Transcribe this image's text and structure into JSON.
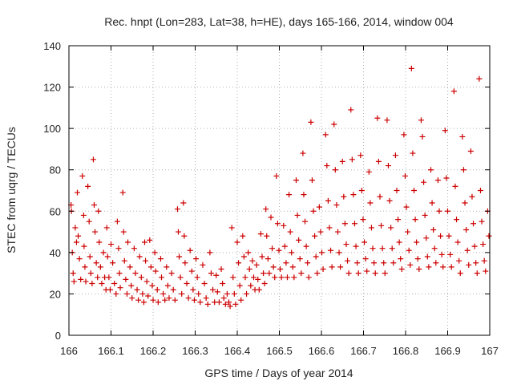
{
  "chart_data": {
    "type": "scatter",
    "title": "Rec. hnpt (Lon=283, Lat=38, h=HE), days 165-166, 2014, window 004",
    "xlabel": "GPS time / Days of year 2014",
    "ylabel": "STEC from uqrg / TECUs",
    "xlim": [
      166,
      167
    ],
    "ylim": [
      0,
      140
    ],
    "xticks": [
      "166",
      "166.1",
      "166.2",
      "166.3",
      "166.4",
      "166.5",
      "166.6",
      "166.7",
      "166.8",
      "166.9",
      "167"
    ],
    "yticks": [
      "0",
      "20",
      "40",
      "60",
      "80",
      "100",
      "120",
      "140"
    ],
    "grid": true,
    "marker": "+",
    "color": "#cc0000",
    "series": [
      {
        "points": [
          [
            166.005,
            63
          ],
          [
            166.006,
            60
          ],
          [
            166.008,
            40
          ],
          [
            166.01,
            30
          ],
          [
            166.012,
            26
          ],
          [
            166.015,
            52
          ],
          [
            166.018,
            45
          ],
          [
            166.02,
            69
          ],
          [
            166.022,
            48
          ],
          [
            166.025,
            37
          ],
          [
            166.028,
            27
          ],
          [
            166.032,
            77
          ],
          [
            166.035,
            58
          ],
          [
            166.036,
            43
          ],
          [
            166.038,
            33
          ],
          [
            166.04,
            26
          ],
          [
            166.045,
            72
          ],
          [
            166.048,
            55
          ],
          [
            166.05,
            38
          ],
          [
            166.052,
            30
          ],
          [
            166.055,
            25
          ],
          [
            166.058,
            85
          ],
          [
            166.06,
            63
          ],
          [
            166.062,
            50
          ],
          [
            166.065,
            35
          ],
          [
            166.068,
            28
          ],
          [
            166.07,
            60
          ],
          [
            166.072,
            45
          ],
          [
            166.075,
            33
          ],
          [
            166.078,
            25
          ],
          [
            166.082,
            40
          ],
          [
            166.085,
            28
          ],
          [
            166.088,
            22
          ],
          [
            166.09,
            52
          ],
          [
            166.092,
            38
          ],
          [
            166.095,
            28
          ],
          [
            166.098,
            22
          ],
          [
            166.1,
            44
          ],
          [
            166.104,
            35
          ],
          [
            166.108,
            25
          ],
          [
            166.112,
            20
          ],
          [
            166.115,
            55
          ],
          [
            166.118,
            42
          ],
          [
            166.12,
            30
          ],
          [
            166.122,
            23
          ],
          [
            166.128,
            69
          ],
          [
            166.13,
            50
          ],
          [
            166.132,
            36
          ],
          [
            166.135,
            27
          ],
          [
            166.138,
            20
          ],
          [
            166.14,
            45
          ],
          [
            166.145,
            33
          ],
          [
            166.148,
            24
          ],
          [
            166.15,
            18
          ],
          [
            166.155,
            42
          ],
          [
            166.158,
            30
          ],
          [
            166.162,
            22
          ],
          [
            166.165,
            17
          ],
          [
            166.168,
            38
          ],
          [
            166.172,
            28
          ],
          [
            166.175,
            20
          ],
          [
            166.178,
            16
          ],
          [
            166.18,
            45
          ],
          [
            166.182,
            36
          ],
          [
            166.185,
            26
          ],
          [
            166.188,
            19
          ],
          [
            166.192,
            46
          ],
          [
            166.195,
            33
          ],
          [
            166.198,
            24
          ],
          [
            166.2,
            17
          ],
          [
            166.204,
            40
          ],
          [
            166.206,
            31
          ],
          [
            166.21,
            22
          ],
          [
            166.212,
            16
          ],
          [
            166.218,
            37
          ],
          [
            166.22,
            28
          ],
          [
            166.224,
            20
          ],
          [
            166.228,
            17
          ],
          [
            166.232,
            33
          ],
          [
            166.235,
            24
          ],
          [
            166.238,
            18
          ],
          [
            166.244,
            30
          ],
          [
            166.248,
            22
          ],
          [
            166.252,
            17
          ],
          [
            166.258,
            61
          ],
          [
            166.26,
            50
          ],
          [
            166.262,
            38
          ],
          [
            166.265,
            28
          ],
          [
            166.268,
            20
          ],
          [
            166.272,
            64
          ],
          [
            166.274,
            48
          ],
          [
            166.276,
            35
          ],
          [
            166.28,
            25
          ],
          [
            166.284,
            18
          ],
          [
            166.288,
            41
          ],
          [
            166.292,
            31
          ],
          [
            166.295,
            22
          ],
          [
            166.298,
            17
          ],
          [
            166.302,
            37
          ],
          [
            166.305,
            28
          ],
          [
            166.308,
            20
          ],
          [
            166.312,
            16
          ],
          [
            166.318,
            34
          ],
          [
            166.322,
            25
          ],
          [
            166.326,
            18
          ],
          [
            166.33,
            15
          ],
          [
            166.335,
            40
          ],
          [
            166.338,
            30
          ],
          [
            166.342,
            22
          ],
          [
            166.346,
            16
          ],
          [
            166.35,
            29
          ],
          [
            166.353,
            21
          ],
          [
            166.357,
            16
          ],
          [
            166.362,
            32
          ],
          [
            166.365,
            25
          ],
          [
            166.368,
            18
          ],
          [
            166.372,
            15
          ],
          [
            166.376,
            20
          ],
          [
            166.38,
            16
          ],
          [
            166.383,
            14
          ],
          [
            166.387,
            52
          ],
          [
            166.39,
            28
          ],
          [
            166.393,
            20
          ],
          [
            166.396,
            15
          ],
          [
            166.4,
            45
          ],
          [
            166.403,
            35
          ],
          [
            166.406,
            24
          ],
          [
            166.409,
            17
          ],
          [
            166.413,
            48
          ],
          [
            166.416,
            38
          ],
          [
            166.419,
            28
          ],
          [
            166.422,
            20
          ],
          [
            166.426,
            40
          ],
          [
            166.429,
            32
          ],
          [
            166.432,
            24
          ],
          [
            166.436,
            36
          ],
          [
            166.439,
            28
          ],
          [
            166.442,
            22
          ],
          [
            166.446,
            34
          ],
          [
            166.449,
            27
          ],
          [
            166.452,
            22
          ],
          [
            166.456,
            49
          ],
          [
            166.459,
            38
          ],
          [
            166.462,
            30
          ],
          [
            166.465,
            25
          ],
          [
            166.468,
            61
          ],
          [
            166.47,
            48
          ],
          [
            166.473,
            37
          ],
          [
            166.476,
            30
          ],
          [
            166.48,
            57
          ],
          [
            166.483,
            42
          ],
          [
            166.486,
            33
          ],
          [
            166.489,
            28
          ],
          [
            166.493,
            77
          ],
          [
            166.496,
            54
          ],
          [
            166.499,
            41
          ],
          [
            166.502,
            32
          ],
          [
            166.505,
            28
          ],
          [
            166.51,
            53
          ],
          [
            166.513,
            43
          ],
          [
            166.516,
            35
          ],
          [
            166.519,
            28
          ],
          [
            166.523,
            68
          ],
          [
            166.526,
            50
          ],
          [
            166.529,
            40
          ],
          [
            166.532,
            33
          ],
          [
            166.535,
            28
          ],
          [
            166.54,
            75
          ],
          [
            166.543,
            58
          ],
          [
            166.546,
            46
          ],
          [
            166.549,
            37
          ],
          [
            166.552,
            30
          ],
          [
            166.556,
            88
          ],
          [
            166.558,
            68
          ],
          [
            166.561,
            55
          ],
          [
            166.564,
            43
          ],
          [
            166.567,
            35
          ],
          [
            166.57,
            28
          ],
          [
            166.575,
            103
          ],
          [
            166.578,
            75
          ],
          [
            166.581,
            60
          ],
          [
            166.584,
            48
          ],
          [
            166.587,
            38
          ],
          [
            166.59,
            30
          ],
          [
            166.595,
            62
          ],
          [
            166.598,
            50
          ],
          [
            166.601,
            40
          ],
          [
            166.604,
            32
          ],
          [
            166.61,
            97
          ],
          [
            166.613,
            82
          ],
          [
            166.616,
            65
          ],
          [
            166.619,
            52
          ],
          [
            166.622,
            41
          ],
          [
            166.625,
            33
          ],
          [
            166.63,
            102
          ],
          [
            166.633,
            80
          ],
          [
            166.636,
            63
          ],
          [
            166.639,
            50
          ],
          [
            166.642,
            40
          ],
          [
            166.645,
            33
          ],
          [
            166.65,
            84
          ],
          [
            166.653,
            67
          ],
          [
            166.656,
            54
          ],
          [
            166.659,
            44
          ],
          [
            166.662,
            36
          ],
          [
            166.665,
            30
          ],
          [
            166.67,
            109
          ],
          [
            166.673,
            85
          ],
          [
            166.676,
            68
          ],
          [
            166.679,
            54
          ],
          [
            166.682,
            43
          ],
          [
            166.685,
            35
          ],
          [
            166.688,
            30
          ],
          [
            166.693,
            87
          ],
          [
            166.696,
            70
          ],
          [
            166.699,
            56
          ],
          [
            166.702,
            45
          ],
          [
            166.705,
            37
          ],
          [
            166.708,
            31
          ],
          [
            166.713,
            79
          ],
          [
            166.716,
            64
          ],
          [
            166.719,
            52
          ],
          [
            166.722,
            42
          ],
          [
            166.725,
            35
          ],
          [
            166.728,
            30
          ],
          [
            166.733,
            105
          ],
          [
            166.736,
            84
          ],
          [
            166.739,
            67
          ],
          [
            166.742,
            53
          ],
          [
            166.745,
            42
          ],
          [
            166.748,
            35
          ],
          [
            166.751,
            30
          ],
          [
            166.756,
            104
          ],
          [
            166.759,
            82
          ],
          [
            166.762,
            65
          ],
          [
            166.765,
            52
          ],
          [
            166.768,
            42
          ],
          [
            166.771,
            35
          ],
          [
            166.776,
            87
          ],
          [
            166.779,
            70
          ],
          [
            166.782,
            56
          ],
          [
            166.785,
            45
          ],
          [
            166.788,
            37
          ],
          [
            166.791,
            32
          ],
          [
            166.796,
            97
          ],
          [
            166.799,
            77
          ],
          [
            166.802,
            62
          ],
          [
            166.805,
            50
          ],
          [
            166.808,
            41
          ],
          [
            166.811,
            34
          ],
          [
            166.814,
            129
          ],
          [
            166.817,
            88
          ],
          [
            166.82,
            70
          ],
          [
            166.823,
            56
          ],
          [
            166.826,
            45
          ],
          [
            166.829,
            37
          ],
          [
            166.832,
            32
          ],
          [
            166.837,
            104
          ],
          [
            166.84,
            96
          ],
          [
            166.843,
            74
          ],
          [
            166.846,
            58
          ],
          [
            166.849,
            47
          ],
          [
            166.852,
            38
          ],
          [
            166.855,
            33
          ],
          [
            166.86,
            80
          ],
          [
            166.863,
            64
          ],
          [
            166.866,
            51
          ],
          [
            166.869,
            42
          ],
          [
            166.872,
            35
          ],
          [
            166.877,
            75
          ],
          [
            166.88,
            60
          ],
          [
            166.883,
            48
          ],
          [
            166.886,
            39
          ],
          [
            166.889,
            33
          ],
          [
            166.894,
            99
          ],
          [
            166.897,
            76
          ],
          [
            166.9,
            60
          ],
          [
            166.903,
            48
          ],
          [
            166.906,
            39
          ],
          [
            166.909,
            33
          ],
          [
            166.915,
            118
          ],
          [
            166.918,
            72
          ],
          [
            166.921,
            56
          ],
          [
            166.924,
            45
          ],
          [
            166.927,
            36
          ],
          [
            166.93,
            30
          ],
          [
            166.935,
            96
          ],
          [
            166.938,
            80
          ],
          [
            166.941,
            64
          ],
          [
            166.944,
            51
          ],
          [
            166.947,
            41
          ],
          [
            166.95,
            34
          ],
          [
            166.955,
            89
          ],
          [
            166.958,
            67
          ],
          [
            166.961,
            54
          ],
          [
            166.964,
            43
          ],
          [
            166.967,
            35
          ],
          [
            166.97,
            30
          ],
          [
            166.975,
            124
          ],
          [
            166.978,
            70
          ],
          [
            166.981,
            55
          ],
          [
            166.984,
            44
          ],
          [
            166.987,
            36
          ],
          [
            166.99,
            31
          ],
          [
            166.995,
            60
          ],
          [
            166.998,
            48
          ]
        ]
      }
    ]
  }
}
